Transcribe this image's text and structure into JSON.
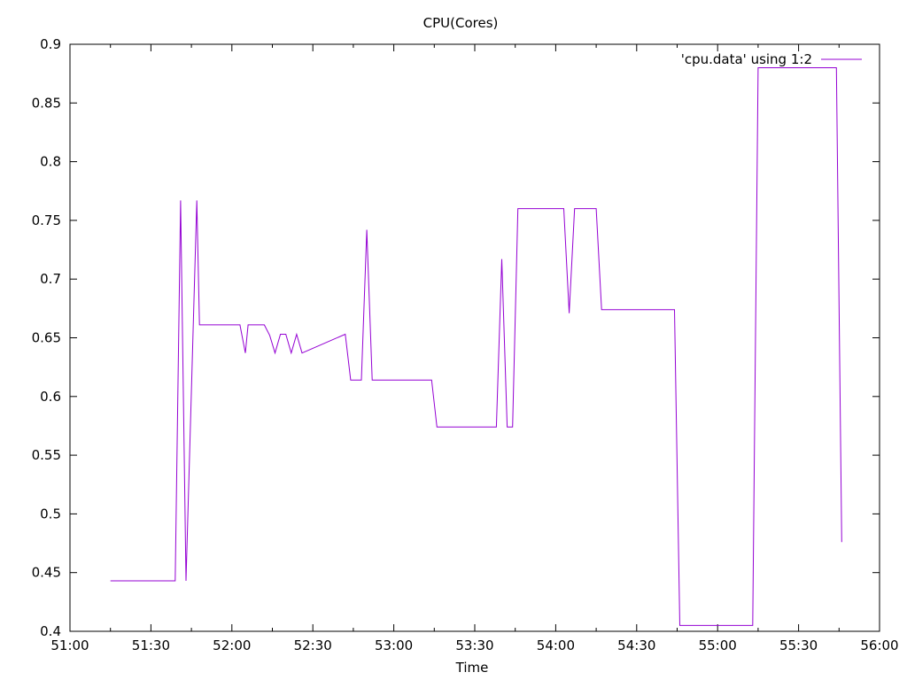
{
  "chart_data": {
    "type": "line",
    "title": "CPU(Cores)",
    "xlabel": "Time",
    "ylabel": "",
    "xlim": [
      "51:00",
      "56:00"
    ],
    "ylim": [
      0.4,
      0.9
    ],
    "x_ticks": [
      "51:00",
      "51:30",
      "52:00",
      "52:30",
      "53:00",
      "53:30",
      "54:00",
      "54:30",
      "55:00",
      "55:30",
      "56:00"
    ],
    "y_ticks": [
      "0.4",
      "0.45",
      "0.5",
      "0.55",
      "0.6",
      "0.65",
      "0.7",
      "0.75",
      "0.8",
      "0.85",
      "0.9"
    ],
    "grid": false,
    "legend_position": "top-right",
    "series": [
      {
        "name": "'cpu.data' using 1:2",
        "color": "#9400d3",
        "x": [
          "51:15",
          "51:39",
          "51:41",
          "51:43",
          "51:47",
          "51:48",
          "52:03",
          "52:05",
          "52:06",
          "52:12",
          "52:14",
          "52:16",
          "52:18",
          "52:20",
          "52:22",
          "52:24",
          "52:26",
          "52:42",
          "52:44",
          "52:48",
          "52:50",
          "52:52",
          "53:14",
          "53:16",
          "53:38",
          "53:40",
          "53:42",
          "53:44",
          "53:46",
          "54:03",
          "54:05",
          "54:07",
          "54:15",
          "54:17",
          "54:44",
          "54:46",
          "55:13",
          "55:15",
          "55:44",
          "55:46"
        ],
        "y": [
          0.443,
          0.443,
          0.767,
          0.443,
          0.767,
          0.661,
          0.661,
          0.637,
          0.661,
          0.661,
          0.652,
          0.637,
          0.653,
          0.653,
          0.637,
          0.653,
          0.637,
          0.653,
          0.614,
          0.614,
          0.742,
          0.614,
          0.614,
          0.574,
          0.574,
          0.717,
          0.574,
          0.574,
          0.76,
          0.76,
          0.671,
          0.76,
          0.76,
          0.674,
          0.674,
          0.405,
          0.405,
          0.88,
          0.88,
          0.476
        ]
      }
    ]
  }
}
